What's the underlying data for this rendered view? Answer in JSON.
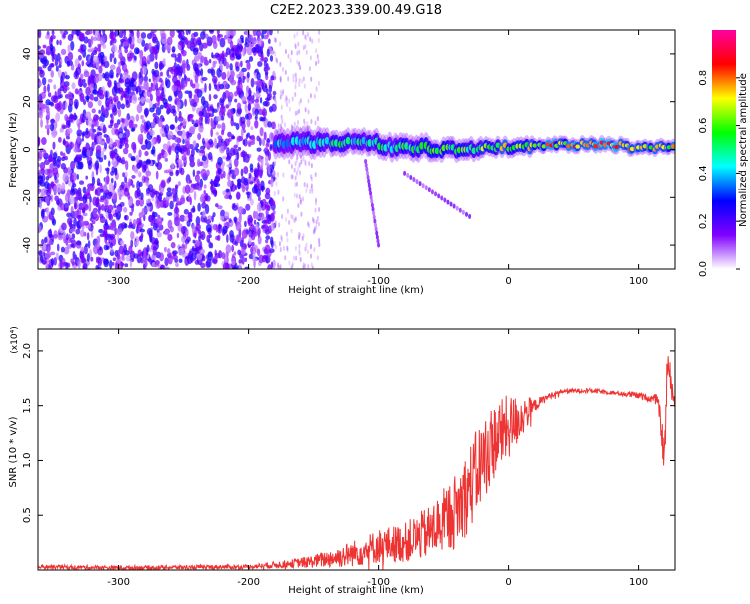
{
  "title": "C2E2.2023.339.00.49.G18",
  "chart_data": [
    {
      "type": "heatmap",
      "xlabel": "Height of straight line (km)",
      "ylabel": "Frequency (Hz)",
      "xlim": [
        -362,
        128
      ],
      "ylim": [
        -50,
        50
      ],
      "xticks": [
        -300,
        -200,
        -100,
        0,
        100
      ],
      "yticks": [
        -40,
        -20,
        0,
        20,
        40
      ],
      "colorbar": {
        "label": "Normalized spectral amplitude",
        "range": [
          0.0,
          1.0
        ],
        "ticks": [
          "0.0",
          "0.2",
          "0.4",
          "0.6",
          "0.8"
        ],
        "colormap": [
          "#ffffff",
          "#8000ff",
          "#0000ff",
          "#00ffff",
          "#00ff00",
          "#ffff00",
          "#ff0000",
          "#ff00a0"
        ]
      },
      "noise_region": [
        -362,
        -180
      ],
      "band_segments": [
        {
          "x": [
            -180,
            -140
          ],
          "f_center": 3,
          "f_width": 8,
          "amplitude": 0.45
        },
        {
          "x": [
            -140,
            -100
          ],
          "f_center": 3,
          "f_width": 7,
          "amplitude": 0.5
        },
        {
          "x": [
            -100,
            -60
          ],
          "f_center": 1,
          "f_width": 7,
          "amplitude": 0.55
        },
        {
          "x": [
            -60,
            -20
          ],
          "f_center": 0,
          "f_width": 6,
          "amplitude": 0.6
        },
        {
          "x": [
            -20,
            20
          ],
          "f_center": 1,
          "f_width": 5,
          "amplitude": 0.7
        },
        {
          "x": [
            20,
            60
          ],
          "f_center": 2,
          "f_width": 4,
          "amplitude": 0.8
        },
        {
          "x": [
            60,
            90
          ],
          "f_center": 2,
          "f_width": 4,
          "amplitude": 0.9
        },
        {
          "x": [
            90,
            128
          ],
          "f_center": 1,
          "f_width": 4,
          "amplitude": 0.75
        }
      ],
      "trails": [
        {
          "x": [
            -80,
            -30
          ],
          "f": [
            -10,
            -28
          ]
        },
        {
          "x": [
            -110,
            -100
          ],
          "f": [
            -5,
            -40
          ]
        }
      ]
    },
    {
      "type": "line",
      "xlabel": "Height of straight line (km)",
      "ylabel": "SNR (10 * v/v)",
      "y_multiplier": "(x10⁴)",
      "xlim": [
        -362,
        128
      ],
      "ylim": [
        0,
        2.2
      ],
      "xticks": [
        -300,
        -200,
        -100,
        0,
        100
      ],
      "yticks": [
        0.5,
        1.0,
        1.5,
        2.0
      ],
      "ytick_labels": [
        "0.5",
        "1.0",
        "1.5",
        "2.0"
      ],
      "color": "#ee3333",
      "x": [
        -362,
        -300,
        -200,
        -165,
        -150,
        -130,
        -110,
        -100,
        -80,
        -60,
        -40,
        -30,
        -20,
        -10,
        0,
        10,
        20,
        30,
        40,
        60,
        80,
        95,
        105,
        115,
        120,
        122,
        128
      ],
      "y": [
        0.03,
        0.02,
        0.03,
        0.06,
        0.08,
        0.12,
        0.18,
        0.22,
        0.25,
        0.35,
        0.55,
        0.75,
        1.0,
        1.2,
        1.3,
        1.4,
        1.5,
        1.58,
        1.63,
        1.64,
        1.62,
        1.6,
        1.58,
        1.55,
        1.0,
        1.9,
        1.5
      ],
      "noise": [
        0.02,
        0.02,
        0.02,
        0.04,
        0.06,
        0.1,
        0.14,
        0.16,
        0.18,
        0.25,
        0.35,
        0.4,
        0.4,
        0.35,
        0.3,
        0.2,
        0.06,
        0.03,
        0.02,
        0.02,
        0.02,
        0.03,
        0.03,
        0.05,
        0.2,
        0.2,
        0.05
      ]
    }
  ]
}
